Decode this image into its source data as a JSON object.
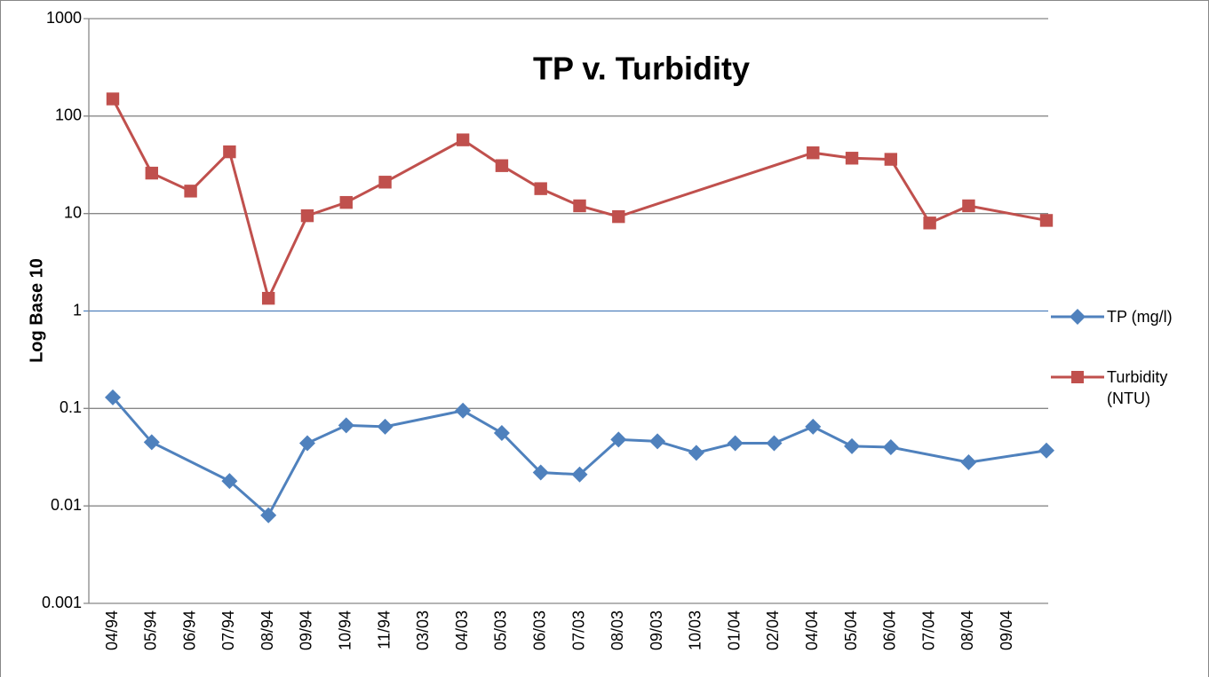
{
  "chart_data": {
    "type": "line",
    "title": "TP v. Turbidity",
    "y_label": "Log Base 10",
    "categories": [
      "04/94",
      "05/94",
      "06/94",
      "07/94",
      "08/94",
      "09/94",
      "10/94",
      "11/94",
      "03/03",
      "04/03",
      "05/03",
      "06/03",
      "07/03",
      "08/03",
      "09/03",
      "10/03",
      "01/04",
      "02/04",
      "04/04",
      "05/04",
      "06/04",
      "07/04",
      "08/04",
      "09/04",
      null
    ],
    "series": [
      {
        "name": "TP (mg/l)",
        "color": "#4f81bd",
        "marker": "diamond",
        "values": [
          0.13,
          0.045,
          null,
          0.018,
          0.008,
          0.044,
          0.067,
          0.065,
          null,
          0.095,
          0.056,
          0.022,
          0.021,
          0.048,
          0.046,
          0.035,
          0.044,
          0.044,
          0.065,
          0.041,
          0.04,
          null,
          0.028,
          null,
          0.037
        ]
      },
      {
        "name": "Turbidity (NTU)",
        "color": "#c0504d",
        "marker": "square",
        "values": [
          150,
          26,
          17,
          43,
          1.35,
          9.5,
          13,
          21,
          null,
          57,
          31,
          18,
          12,
          9.3,
          null,
          null,
          null,
          null,
          42,
          37,
          36,
          8,
          12,
          null,
          8.5
        ]
      }
    ],
    "ylim": [
      0.001,
      1000
    ],
    "yticks": [
      0.001,
      0.01,
      0.1,
      1,
      10,
      100,
      1000
    ],
    "log_scale": true,
    "grid": true,
    "x_axis_at": 1,
    "span_gaps": true,
    "legend": "right"
  }
}
